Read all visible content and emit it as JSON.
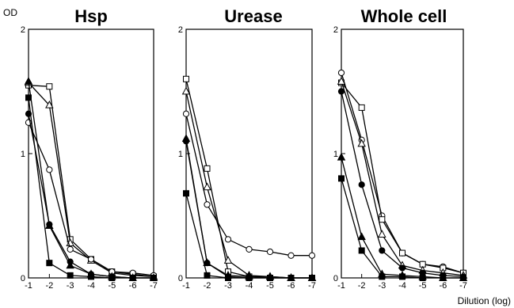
{
  "chart_data": [
    {
      "type": "line",
      "title": "Hsp",
      "ylabel": "OD",
      "xlabel": "",
      "xlim": [
        -7,
        -1
      ],
      "ylim": [
        0,
        2
      ],
      "x": [
        -1,
        -2,
        -3,
        -4,
        -5,
        -6,
        -7
      ],
      "xtick_labels": [
        "-1",
        "-2",
        "-3",
        "-4",
        "-5",
        "-6",
        "-7"
      ],
      "ytick_labels": [
        "0",
        "1",
        "2"
      ],
      "series": [
        {
          "marker": "open-square",
          "values": [
            1.55,
            1.54,
            0.31,
            0.15,
            0.05,
            0.03,
            0.01
          ]
        },
        {
          "marker": "open-triangle",
          "values": [
            1.57,
            1.39,
            0.28,
            0.14,
            0.04,
            0.02,
            0.01
          ]
        },
        {
          "marker": "open-circle",
          "values": [
            1.25,
            0.87,
            0.23,
            0.15,
            0.05,
            0.04,
            0.02
          ]
        },
        {
          "marker": "filled-triangle",
          "values": [
            1.58,
            0.42,
            0.1,
            0.03,
            0.01,
            0.0,
            0.0
          ]
        },
        {
          "marker": "filled-circle",
          "values": [
            1.32,
            0.43,
            0.13,
            0.03,
            0.01,
            0.0,
            0.0
          ]
        },
        {
          "marker": "filled-square",
          "values": [
            1.45,
            0.12,
            0.02,
            0.01,
            0.0,
            0.0,
            0.0
          ]
        }
      ]
    },
    {
      "type": "line",
      "title": "Urease",
      "ylabel": "",
      "xlabel": "",
      "xlim": [
        -7,
        -1
      ],
      "ylim": [
        0,
        2
      ],
      "x": [
        -1,
        -2,
        -3,
        -4,
        -5,
        -6,
        -7
      ],
      "xtick_labels": [
        "-1",
        "-2",
        "-3",
        "-4",
        "-5",
        "-6",
        "-7"
      ],
      "ytick_labels": [
        "0",
        "1",
        "2"
      ],
      "series": [
        {
          "marker": "open-square",
          "values": [
            1.6,
            0.88,
            0.05,
            0.01,
            0.0,
            0.0,
            0.0
          ]
        },
        {
          "marker": "open-triangle",
          "values": [
            1.5,
            0.73,
            0.14,
            0.02,
            0.01,
            0.0,
            0.0
          ]
        },
        {
          "marker": "open-circle",
          "values": [
            1.32,
            0.59,
            0.31,
            0.23,
            0.21,
            0.18,
            0.18
          ]
        },
        {
          "marker": "filled-triangle",
          "values": [
            1.12,
            0.12,
            0.02,
            0.01,
            0.01,
            0.0,
            0.0
          ]
        },
        {
          "marker": "filled-circle",
          "values": [
            1.1,
            0.12,
            0.01,
            0.0,
            0.0,
            0.0,
            0.0
          ]
        },
        {
          "marker": "filled-square",
          "values": [
            0.68,
            0.02,
            0.0,
            0.0,
            0.0,
            0.0,
            0.0
          ]
        }
      ]
    },
    {
      "type": "line",
      "title": "Whole cell",
      "ylabel": "",
      "xlabel": "Dilution (log)",
      "xlim": [
        -7,
        -1
      ],
      "ylim": [
        0,
        2
      ],
      "x": [
        -1,
        -2,
        -3,
        -4,
        -5,
        -6,
        -7
      ],
      "xtick_labels": [
        "-1",
        "-2",
        "-3",
        "-4",
        "-5",
        "-6",
        "-7"
      ],
      "ytick_labels": [
        "0",
        "1",
        "2"
      ],
      "series": [
        {
          "marker": "open-circle",
          "values": [
            1.65,
            1.11,
            0.5,
            0.2,
            0.11,
            0.09,
            0.04
          ]
        },
        {
          "marker": "open-square",
          "values": [
            1.57,
            1.37,
            0.47,
            0.2,
            0.11,
            0.08,
            0.04
          ]
        },
        {
          "marker": "open-triangle",
          "values": [
            1.58,
            1.08,
            0.35,
            0.1,
            0.06,
            0.04,
            0.02
          ]
        },
        {
          "marker": "filled-circle",
          "values": [
            1.5,
            0.75,
            0.22,
            0.08,
            0.04,
            0.02,
            0.01
          ]
        },
        {
          "marker": "filled-triangle",
          "values": [
            0.97,
            0.33,
            0.03,
            0.02,
            0.01,
            0.0,
            0.0
          ]
        },
        {
          "marker": "filled-square",
          "values": [
            0.8,
            0.22,
            0.01,
            0.01,
            0.0,
            0.0,
            0.0
          ]
        }
      ]
    }
  ]
}
